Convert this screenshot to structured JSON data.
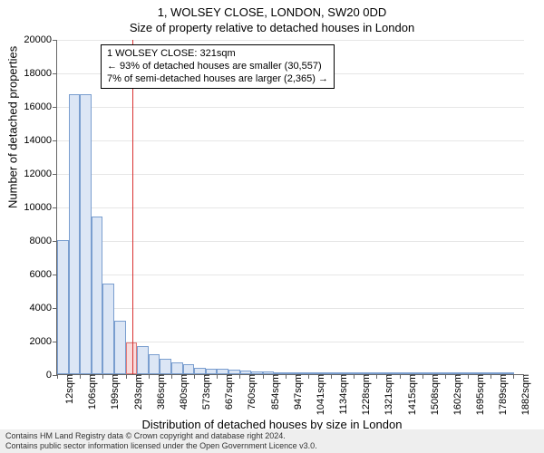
{
  "title_main": "1, WOLSEY CLOSE, LONDON, SW20 0DD",
  "title_sub": "Size of property relative to detached houses in London",
  "chart": {
    "type": "histogram",
    "ylabel": "Number of detached properties",
    "xlabel": "Distribution of detached houses by size in London",
    "ylim": [
      0,
      20000
    ],
    "ytick_step": 2000,
    "yticks": [
      0,
      2000,
      4000,
      6000,
      8000,
      10000,
      12000,
      14000,
      16000,
      18000,
      20000
    ],
    "x_start": 12,
    "x_bin_width": 46.8,
    "x_end": 1929,
    "xtick_labels": [
      "12sqm",
      "106sqm",
      "199sqm",
      "293sqm",
      "386sqm",
      "480sqm",
      "573sqm",
      "667sqm",
      "760sqm",
      "854sqm",
      "947sqm",
      "1041sqm",
      "1134sqm",
      "1228sqm",
      "1321sqm",
      "1415sqm",
      "1508sqm",
      "1602sqm",
      "1695sqm",
      "1789sqm",
      "1882sqm"
    ],
    "xtick_values": [
      12,
      106,
      199,
      293,
      386,
      480,
      573,
      667,
      760,
      854,
      947,
      1041,
      1134,
      1228,
      1321,
      1415,
      1508,
      1602,
      1695,
      1789,
      1882
    ],
    "bar_counts": [
      8000,
      16700,
      16700,
      9400,
      5400,
      3200,
      1900,
      1700,
      1200,
      900,
      700,
      600,
      400,
      350,
      300,
      250,
      200,
      180,
      150,
      120,
      100,
      90,
      80,
      70,
      60,
      50,
      45,
      40,
      35,
      30,
      28,
      25,
      22,
      20,
      18,
      16,
      14,
      12,
      10,
      9
    ],
    "bar_fill": "#dce6f5",
    "bar_border": "#7a9ecf",
    "highlight_fill": "#f8dcdc",
    "highlight_border": "#e07a7a",
    "ref_line_color": "#d93030",
    "ref_value_sqm": 321,
    "grid_color": "#e6e6e6",
    "background_color": "#ffffff"
  },
  "annotation": {
    "line1": "1 WOLSEY CLOSE: 321sqm",
    "line2": "← 93% of detached houses are smaller (30,557)",
    "line3": "7% of semi-detached houses are larger (2,365) →"
  },
  "footer": {
    "line1": "Contains HM Land Registry data © Crown copyright and database right 2024.",
    "line2": "Contains public sector information licensed under the Open Government Licence v3.0."
  }
}
